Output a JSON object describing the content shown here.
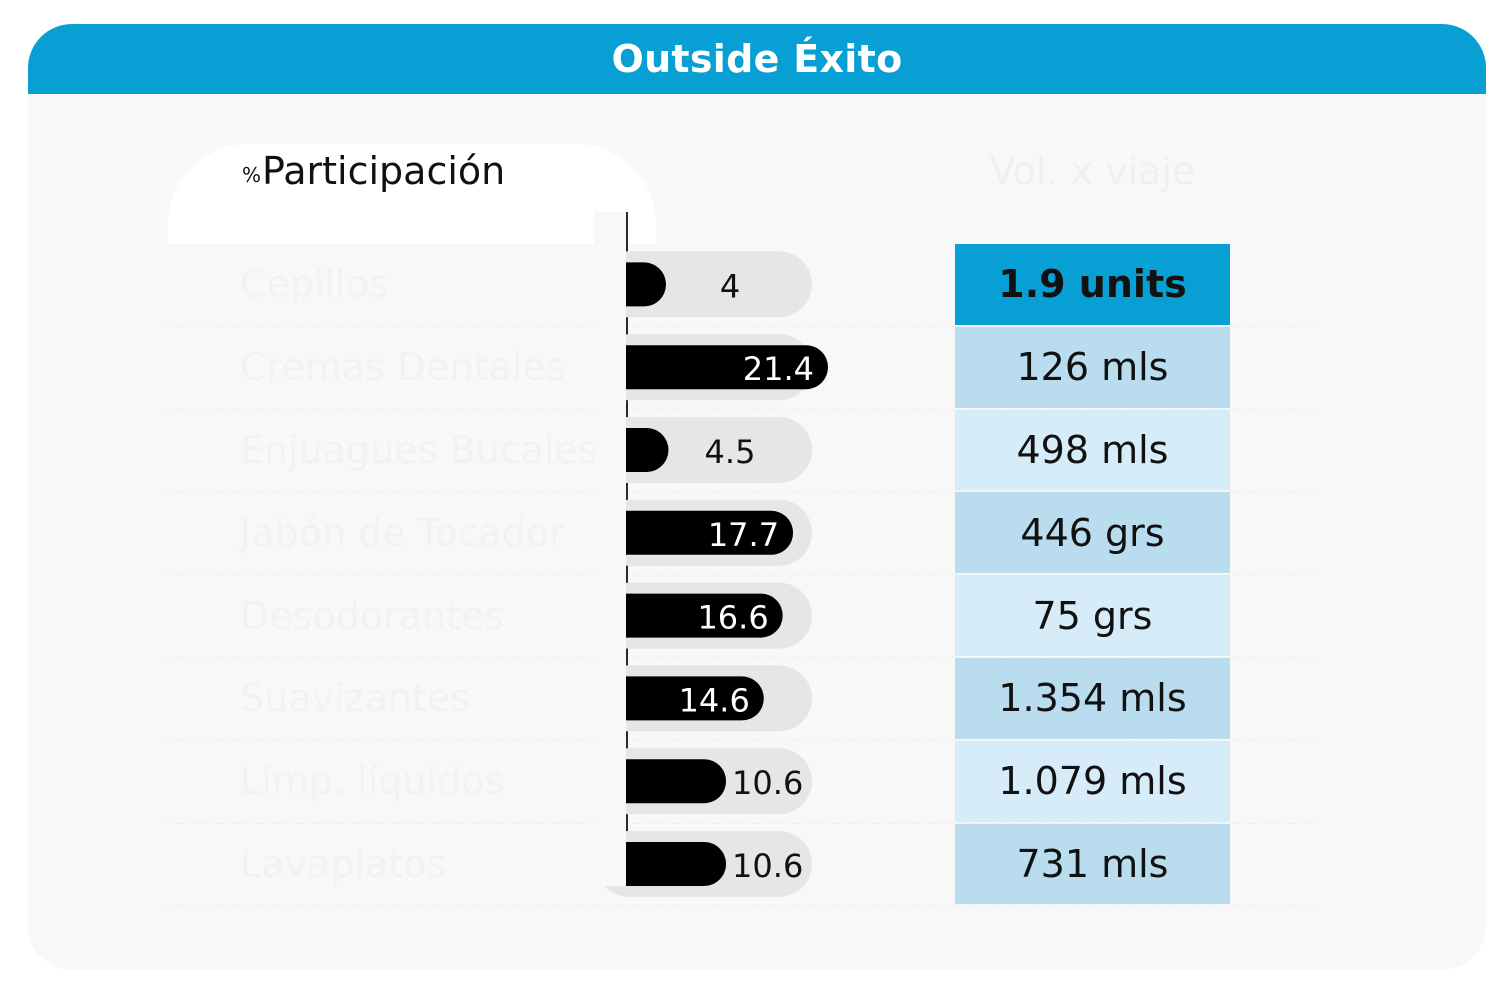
{
  "title": "Outside Éxito",
  "left_header": {
    "pct": "%",
    "label": "Participación"
  },
  "right_header": "Vol. x viaje",
  "colors": {
    "header": "#079fd4",
    "bar": "#000000",
    "track": "#e6e6e6",
    "vol_highlight": "#079fd4",
    "vol_dark": "#b9dcef",
    "vol_light": "#d6ecf8"
  },
  "chart_data": {
    "type": "bar",
    "title": "Outside Éxito",
    "categories": [
      "Cepillos",
      "Cremas Dentales",
      "Enjuagues Bucales",
      "Jabón de Tocador",
      "Desodorantes",
      "Suavizantes",
      "Limp. líquidos",
      "Lavaplatos"
    ],
    "series": [
      {
        "name": "%Participación",
        "values": [
          4,
          21.4,
          4.5,
          17.7,
          16.6,
          14.6,
          10.6,
          10.6
        ],
        "labels": [
          "4",
          "21.4",
          "4.5",
          "17.7",
          "16.6",
          "14.6",
          "10.6",
          "10.6"
        ]
      }
    ],
    "xlim": [
      0,
      21.4
    ],
    "orientation": "horizontal",
    "table": {
      "header": "Vol. x viaje",
      "values": [
        "1.9 units",
        "126 mls",
        "498 mls",
        "446 grs",
        "75 grs",
        "1.354 mls",
        "1.079 mls",
        "731 mls"
      ],
      "highlight_index": 0
    }
  }
}
